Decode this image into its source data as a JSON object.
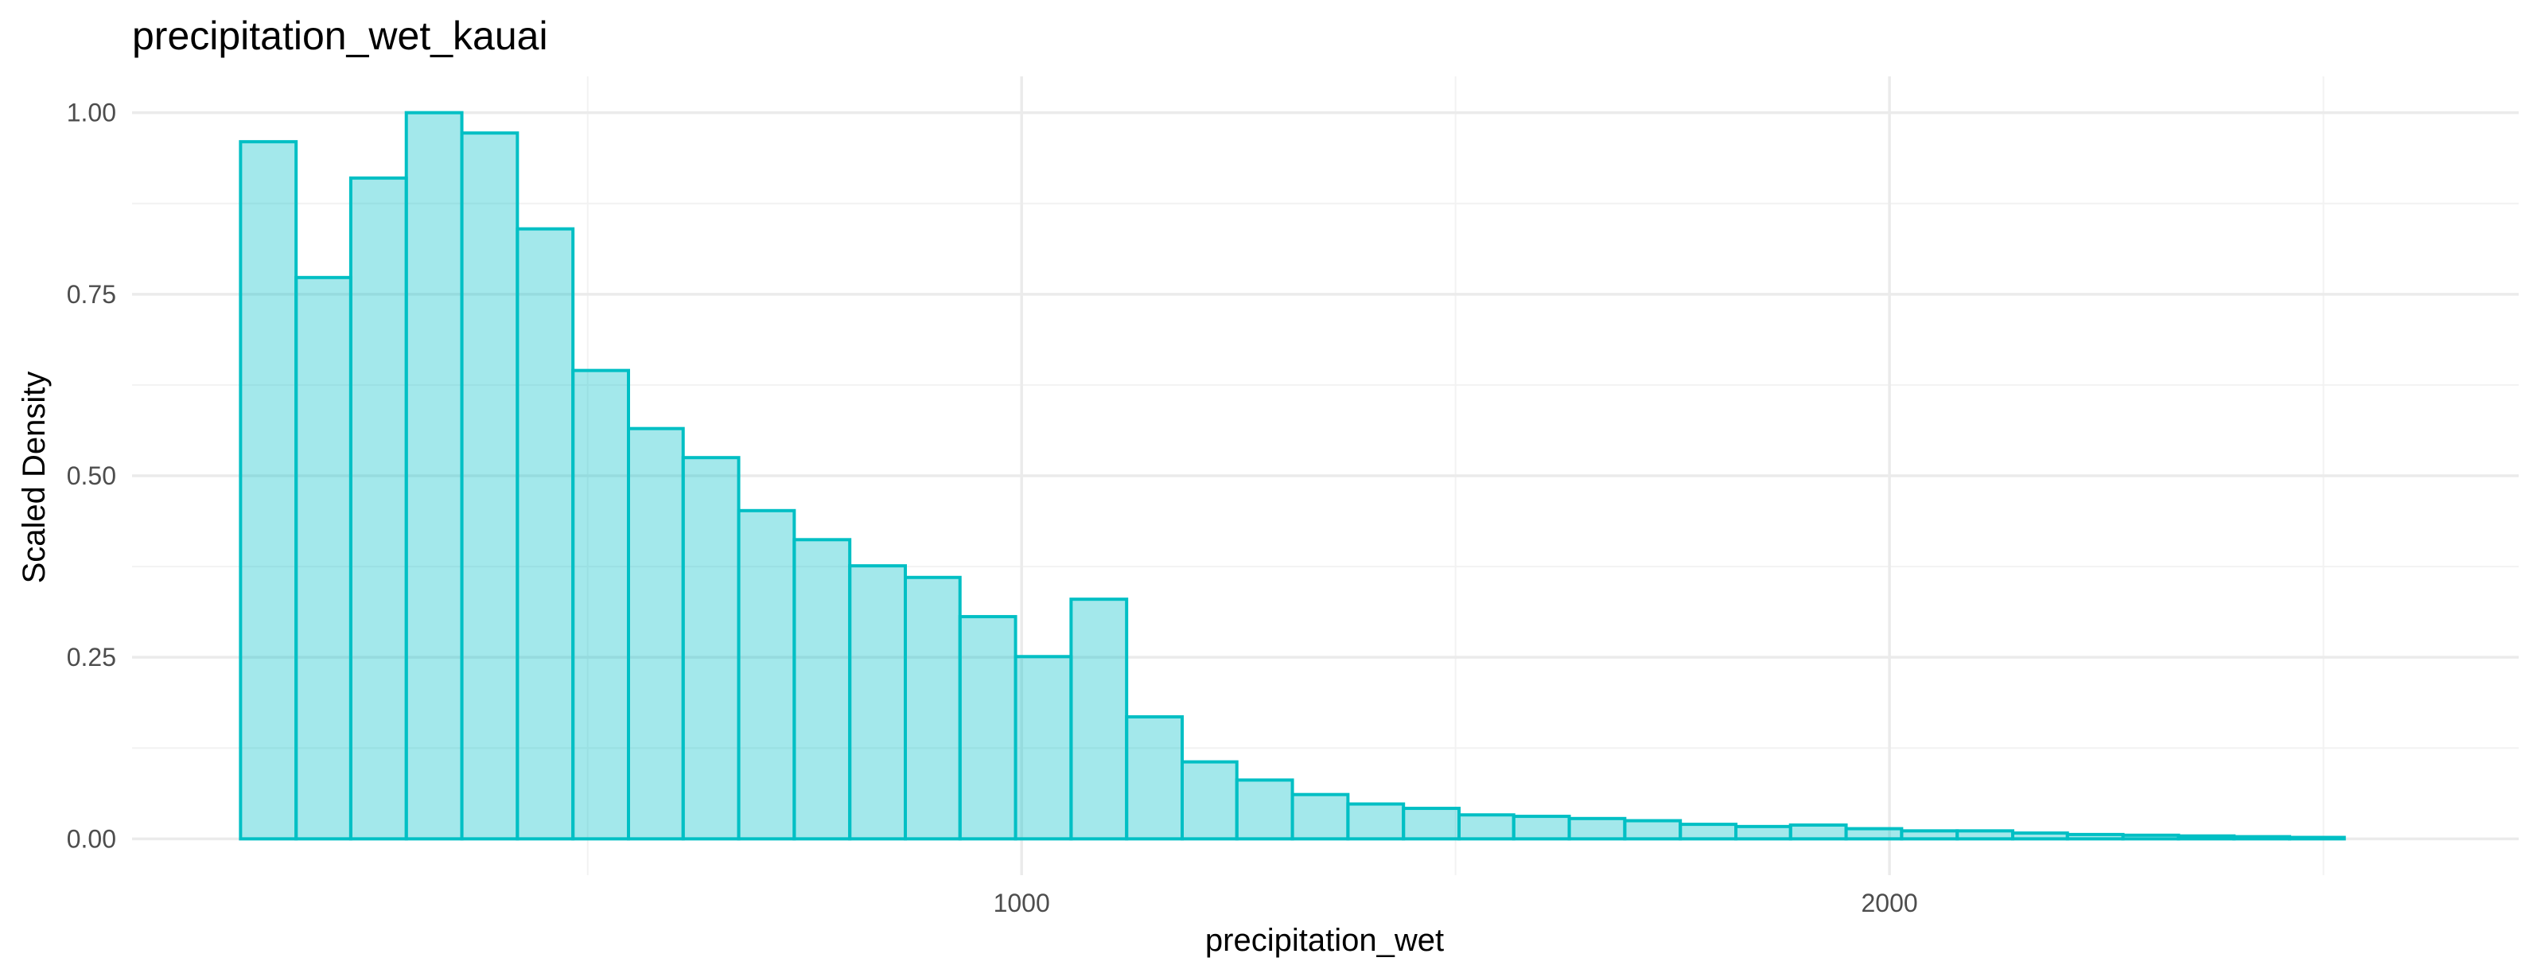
{
  "chart_data": {
    "type": "bar",
    "subtype": "histogram",
    "title": "precipitation_wet_kauai",
    "xlabel": "precipitation_wet",
    "ylabel": "Scaled Density",
    "xlim": [
      -25,
      2725
    ],
    "ylim": [
      -0.05,
      1.05
    ],
    "x_ticks": [
      1000,
      2000
    ],
    "x_minor_ticks": [
      500,
      1500,
      2500
    ],
    "y_ticks": [
      0.0,
      0.25,
      0.5,
      0.75,
      1.0
    ],
    "y_tick_labels": [
      "0.00",
      "0.25",
      "0.50",
      "0.75",
      "1.00"
    ],
    "y_minor_ticks": [
      0.125,
      0.375,
      0.625,
      0.875
    ],
    "grid": true,
    "legend": "none",
    "bin_width": 63.8,
    "bins": [
      {
        "x0": 100,
        "x1": 164,
        "value": 0.96
      },
      {
        "x0": 164,
        "x1": 227,
        "value": 0.773
      },
      {
        "x0": 227,
        "x1": 291,
        "value": 0.91
      },
      {
        "x0": 291,
        "x1": 355,
        "value": 1.0
      },
      {
        "x0": 355,
        "x1": 419,
        "value": 0.972
      },
      {
        "x0": 419,
        "x1": 483,
        "value": 0.84
      },
      {
        "x0": 483,
        "x1": 547,
        "value": 0.645
      },
      {
        "x0": 547,
        "x1": 610,
        "value": 0.565
      },
      {
        "x0": 610,
        "x1": 674,
        "value": 0.525
      },
      {
        "x0": 674,
        "x1": 738,
        "value": 0.452
      },
      {
        "x0": 738,
        "x1": 802,
        "value": 0.412
      },
      {
        "x0": 802,
        "x1": 866,
        "value": 0.376
      },
      {
        "x0": 866,
        "x1": 929,
        "value": 0.36
      },
      {
        "x0": 929,
        "x1": 993,
        "value": 0.306
      },
      {
        "x0": 993,
        "x1": 1057,
        "value": 0.251
      },
      {
        "x0": 1057,
        "x1": 1121,
        "value": 0.33
      },
      {
        "x0": 1121,
        "x1": 1185,
        "value": 0.168
      },
      {
        "x0": 1185,
        "x1": 1248,
        "value": 0.106
      },
      {
        "x0": 1248,
        "x1": 1312,
        "value": 0.081
      },
      {
        "x0": 1312,
        "x1": 1376,
        "value": 0.061
      },
      {
        "x0": 1376,
        "x1": 1440,
        "value": 0.048
      },
      {
        "x0": 1440,
        "x1": 1504,
        "value": 0.042
      },
      {
        "x0": 1504,
        "x1": 1567,
        "value": 0.033
      },
      {
        "x0": 1567,
        "x1": 1631,
        "value": 0.031
      },
      {
        "x0": 1631,
        "x1": 1695,
        "value": 0.028
      },
      {
        "x0": 1695,
        "x1": 1759,
        "value": 0.025
      },
      {
        "x0": 1759,
        "x1": 1823,
        "value": 0.02
      },
      {
        "x0": 1823,
        "x1": 1886,
        "value": 0.017
      },
      {
        "x0": 1886,
        "x1": 1950,
        "value": 0.019
      },
      {
        "x0": 1950,
        "x1": 2014,
        "value": 0.014
      },
      {
        "x0": 2014,
        "x1": 2078,
        "value": 0.011
      },
      {
        "x0": 2078,
        "x1": 2142,
        "value": 0.011
      },
      {
        "x0": 2142,
        "x1": 2205,
        "value": 0.008
      },
      {
        "x0": 2205,
        "x1": 2269,
        "value": 0.006
      },
      {
        "x0": 2269,
        "x1": 2333,
        "value": 0.005
      },
      {
        "x0": 2333,
        "x1": 2397,
        "value": 0.004
      },
      {
        "x0": 2397,
        "x1": 2461,
        "value": 0.003
      },
      {
        "x0": 2461,
        "x1": 2524,
        "value": 0.002
      }
    ],
    "colors": {
      "bar_fill": "#00c0c8",
      "bar_fill_opacity": 0.36,
      "bar_stroke": "#00bfc4"
    }
  }
}
